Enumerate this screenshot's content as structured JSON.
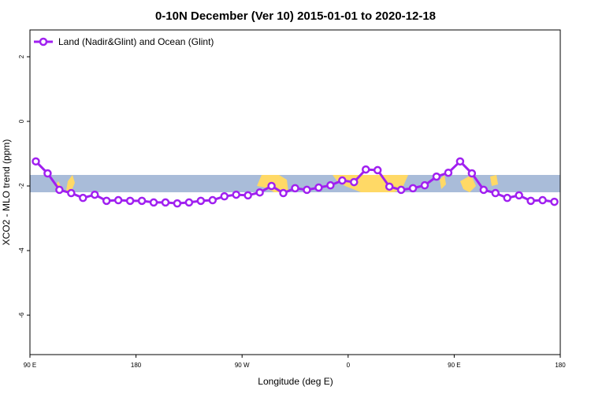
{
  "chart_data": {
    "type": "line",
    "title": "0-10N December (Ver 10)   2015-01-01 to 2020-12-18",
    "x_label": "Longitude (deg E)",
    "y_label": "XCO2 - MLO trend (ppm)",
    "x": [
      95,
      105,
      115,
      125,
      135,
      145,
      155,
      165,
      175,
      185,
      195,
      205,
      215,
      225,
      235,
      245,
      255,
      265,
      275,
      285,
      295,
      305,
      315,
      325,
      335,
      345,
      355,
      365,
      375,
      385,
      395,
      405,
      415,
      425,
      435,
      445,
      455,
      465,
      475,
      485,
      495,
      505,
      515,
      525,
      535
    ],
    "series": [
      {
        "name": "Land (Nadir&Glint) and Ocean (Glint)",
        "color": "#a020f0",
        "values": [
          -1.24,
          -1.61,
          -2.12,
          -2.22,
          -2.37,
          -2.27,
          -2.46,
          -2.44,
          -2.46,
          -2.46,
          -2.51,
          -2.51,
          -2.54,
          -2.51,
          -2.46,
          -2.44,
          -2.32,
          -2.27,
          -2.29,
          -2.2,
          -2.0,
          -2.22,
          -2.07,
          -2.12,
          -2.05,
          -1.98,
          -1.83,
          -1.88,
          -1.49,
          -1.51,
          -2.02,
          -2.12,
          -2.07,
          -1.98,
          -1.71,
          -1.59,
          -1.24,
          -1.61,
          -2.12,
          -2.22,
          -2.37,
          -2.29,
          -2.46,
          -2.44,
          -2.49
        ]
      }
    ],
    "xlim": [
      90,
      540
    ],
    "xticks": [
      {
        "value": 90,
        "label": "90 E"
      },
      180,
      {
        "value": 270,
        "label": "90 W"
      },
      {
        "value": 360,
        "label": "0"
      },
      {
        "value": 450,
        "label": "90 E"
      },
      {
        "value": 540,
        "label": "180"
      }
    ],
    "ylim": [
      -7.22,
      2.83
    ],
    "yticks": [
      -6,
      -4,
      -2,
      0,
      2
    ],
    "legend": "top-left"
  }
}
